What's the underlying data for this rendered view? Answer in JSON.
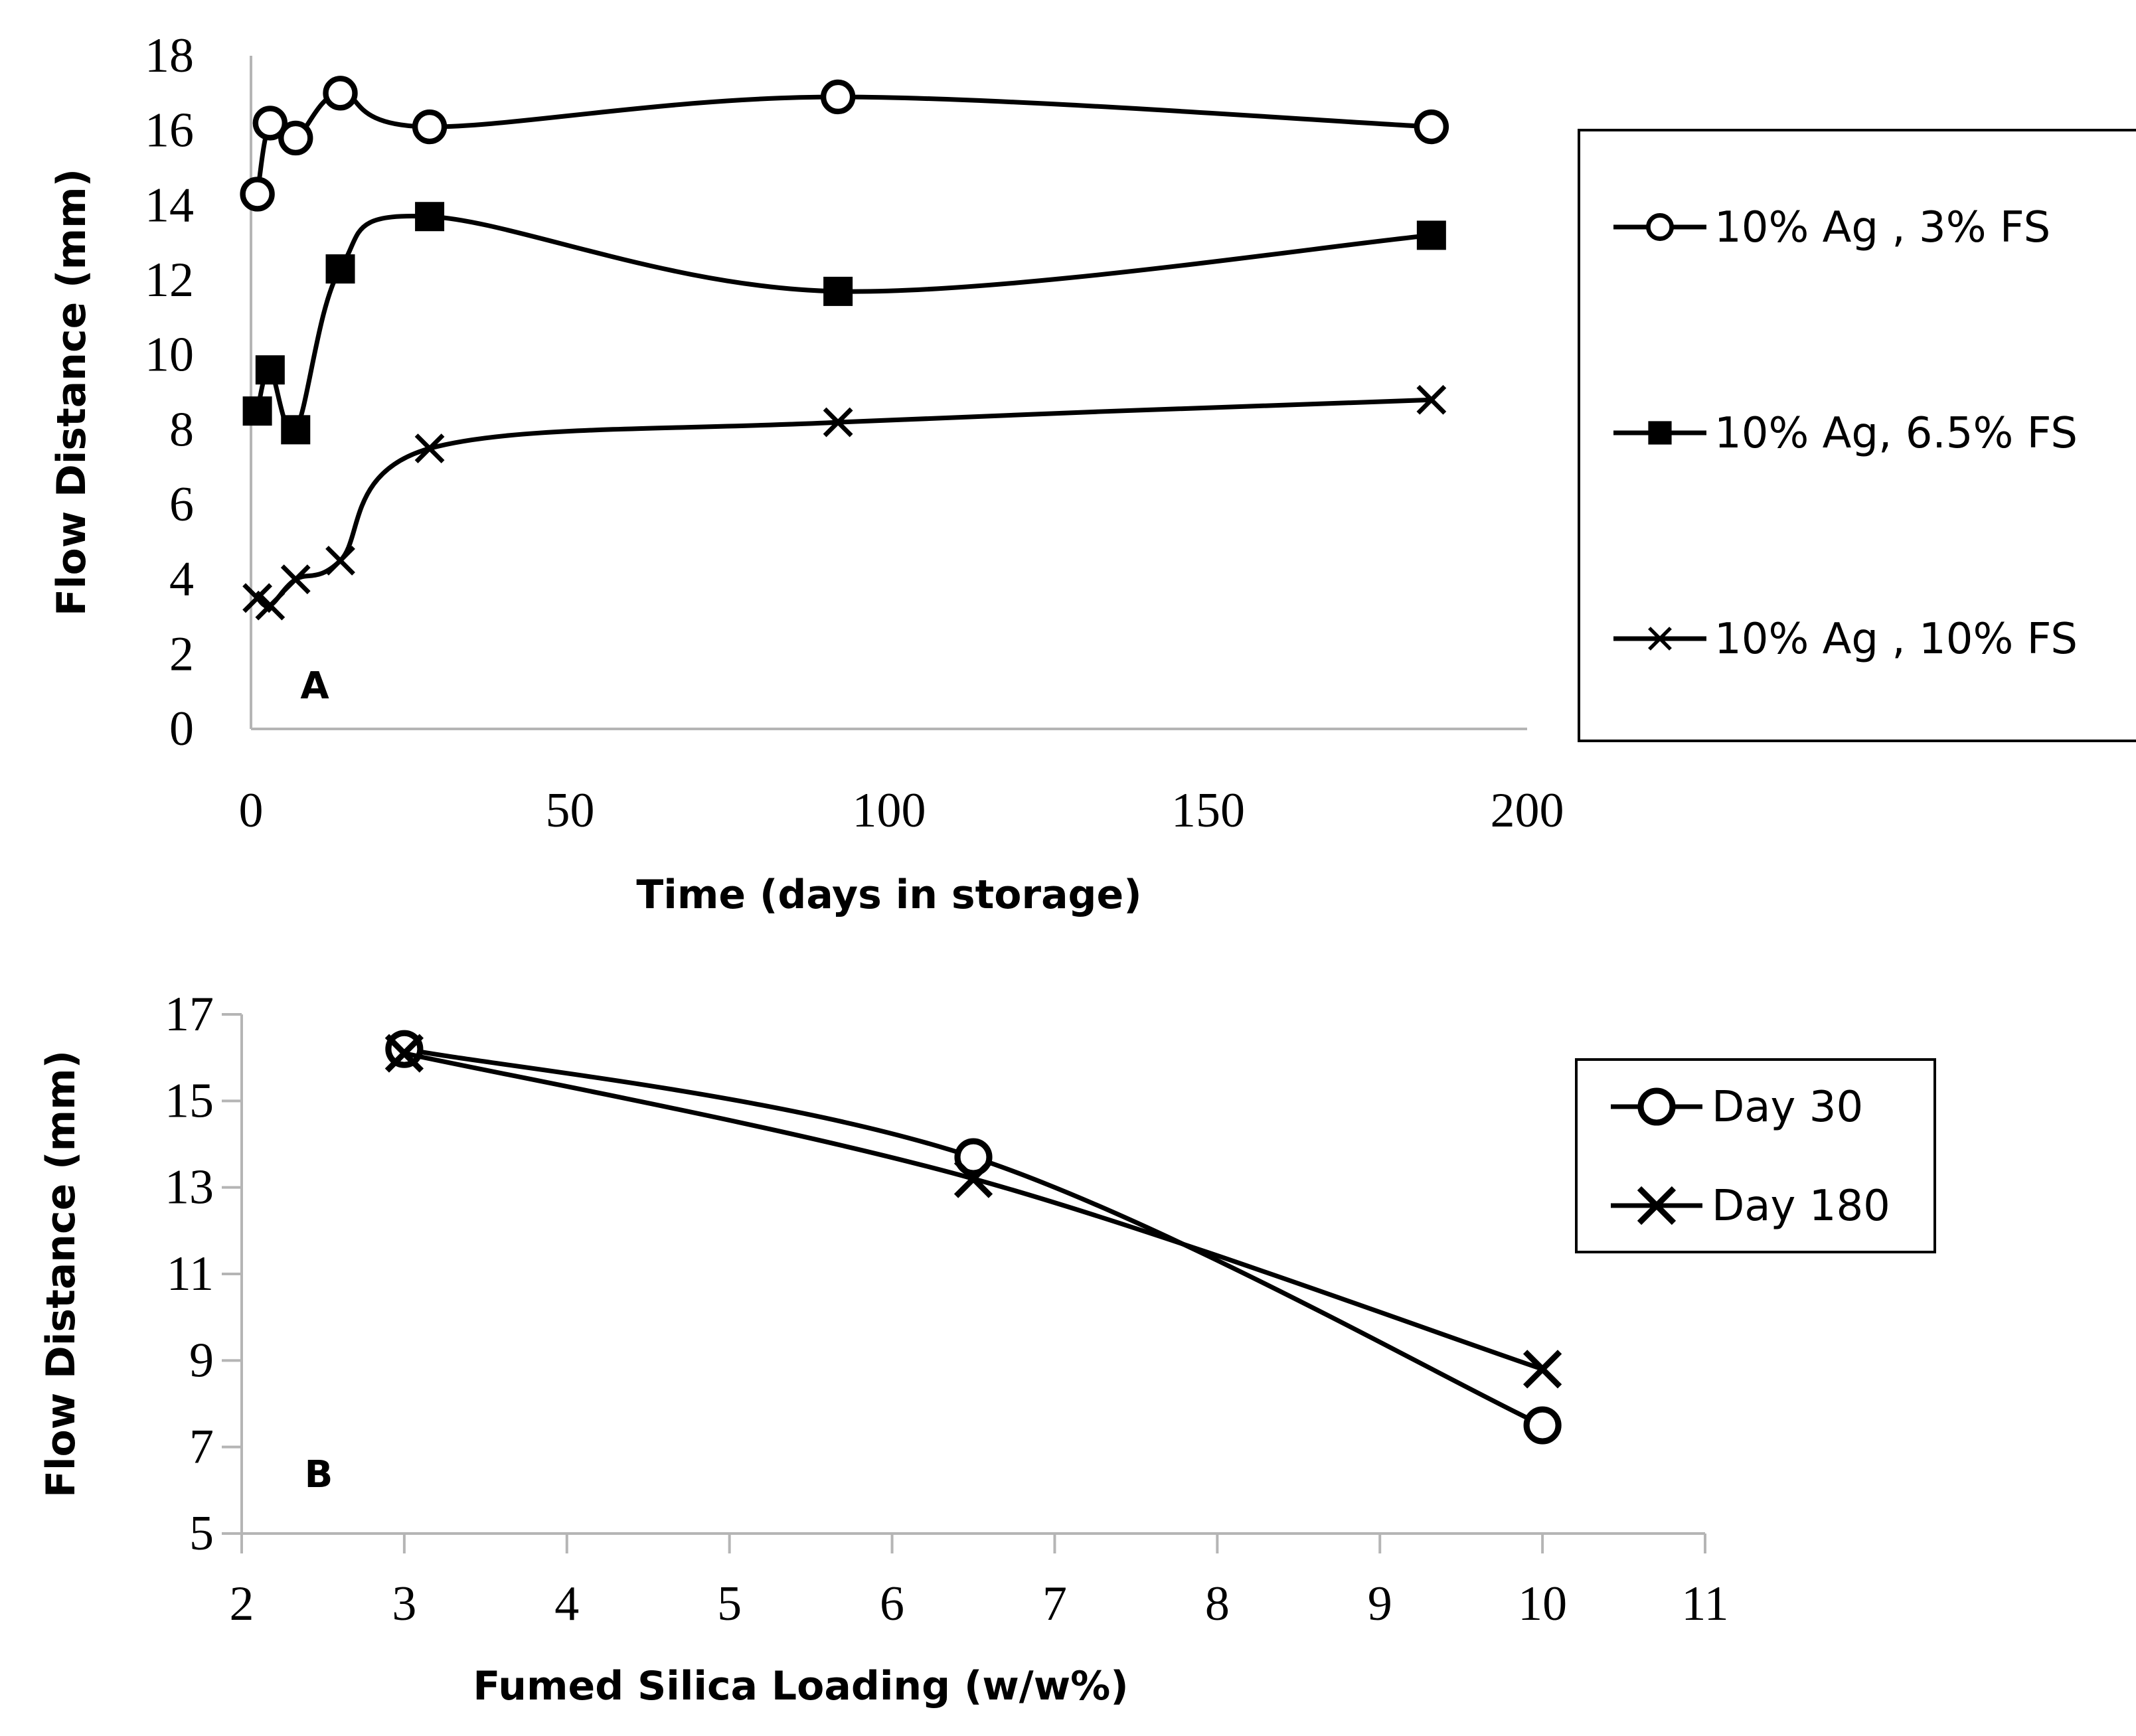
{
  "chart_data": [
    {
      "type": "line",
      "panel_label": "A",
      "xlabel": "Time (days in storage)",
      "ylabel": "Flow Distance (mm)",
      "xlim": [
        0,
        200
      ],
      "ylim": [
        0,
        18
      ],
      "xticks": [
        0,
        50,
        100,
        150,
        200
      ],
      "yticks": [
        0,
        2,
        4,
        6,
        8,
        10,
        12,
        14,
        16,
        18
      ],
      "grid": false,
      "smooth": true,
      "legend_position": "right",
      "series": [
        {
          "name": "10% Ag , 3% FS",
          "marker": "open-circle",
          "x": [
            1,
            3,
            7,
            14,
            28,
            92,
            185
          ],
          "y": [
            14.3,
            16.2,
            15.8,
            17.0,
            16.1,
            16.9,
            16.1
          ]
        },
        {
          "name": "10% Ag, 6.5% FS",
          "marker": "filled-square",
          "x": [
            1,
            3,
            7,
            14,
            28,
            92,
            185
          ],
          "y": [
            8.5,
            9.6,
            8.0,
            12.3,
            13.7,
            11.7,
            13.2
          ]
        },
        {
          "name": "10% Ag , 10% FS",
          "marker": "x",
          "x": [
            1,
            3,
            7,
            14,
            28,
            92,
            185
          ],
          "y": [
            3.5,
            3.3,
            4.0,
            4.5,
            7.5,
            8.2,
            8.8
          ]
        }
      ]
    },
    {
      "type": "line",
      "panel_label": "B",
      "xlabel": "Fumed Silica Loading (w/w%)",
      "ylabel": "Flow Distance (mm)",
      "xlim": [
        2,
        11
      ],
      "ylim": [
        5,
        17
      ],
      "xticks": [
        2,
        3,
        4,
        5,
        6,
        7,
        8,
        9,
        10,
        11
      ],
      "yticks": [
        5,
        7,
        9,
        11,
        13,
        15,
        17
      ],
      "grid": false,
      "smooth": true,
      "legend_position": "right",
      "series": [
        {
          "name": "Day 30",
          "marker": "open-circle",
          "x": [
            3,
            6.5,
            10
          ],
          "y": [
            16.2,
            13.7,
            7.5
          ]
        },
        {
          "name": "Day 180",
          "marker": "x",
          "x": [
            3,
            6.5,
            10
          ],
          "y": [
            16.1,
            13.2,
            8.8
          ]
        }
      ]
    }
  ]
}
